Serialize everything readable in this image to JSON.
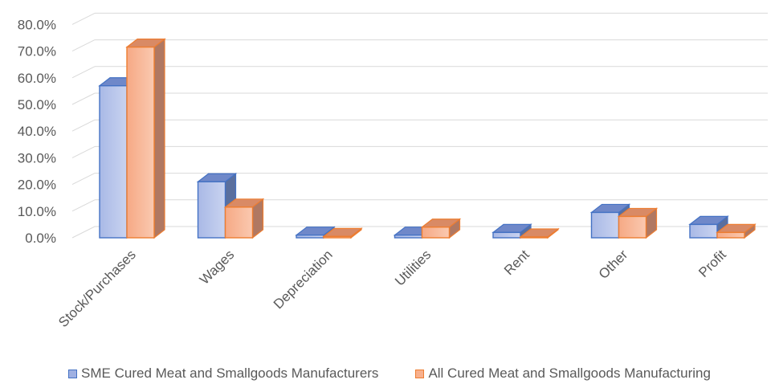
{
  "chart_data": {
    "type": "bar",
    "style": "3d-clustered-column",
    "categories": [
      "Stock/Purchases",
      "Wages",
      "Depreciation",
      "Utilities",
      "Rent",
      "Other",
      "Profit"
    ],
    "series": [
      {
        "name": "SME Cured Meat and Smallgoods Manufacturers",
        "values": [
          57.0,
          21.0,
          1.0,
          1.0,
          2.0,
          9.5,
          5.0
        ],
        "fill": "#9FB0E2",
        "fill_light": "#C5D0EF",
        "edge": "#4472C4",
        "top": "#6F88C9",
        "side": "#5A6F9E"
      },
      {
        "name": "All Cured Meat and Smallgoods Manufacturing",
        "values": [
          71.5,
          11.5,
          0.5,
          4.0,
          0.3,
          8.0,
          2.0
        ],
        "fill": "#F8B08D",
        "fill_light": "#FBCDB5",
        "edge": "#ED7D31",
        "top": "#D98A65",
        "side": "#B07862"
      }
    ],
    "y_ticks": [
      "0.0%",
      "10.0%",
      "20.0%",
      "30.0%",
      "40.0%",
      "50.0%",
      "60.0%",
      "70.0%",
      "80.0%"
    ],
    "ylim": [
      0,
      80
    ],
    "grid": true,
    "legend_position": "bottom"
  }
}
